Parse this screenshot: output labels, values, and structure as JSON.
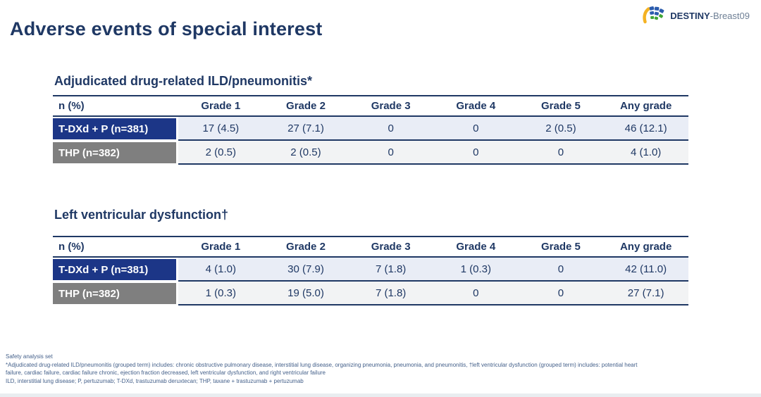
{
  "slide": {
    "title": "Adverse events of special interest",
    "logo": {
      "brand_bold": "DESTINY",
      "brand_light": "-Breast09",
      "icon": "destiny-fan-icon"
    }
  },
  "tables": [
    {
      "title": "Adjudicated drug-related ILD/pneumonitis*",
      "columns": [
        "n (%)",
        "Grade 1",
        "Grade 2",
        "Grade 3",
        "Grade 4",
        "Grade 5",
        "Any grade"
      ],
      "rows": [
        {
          "label": "T-DXd + P (n=381)",
          "values": [
            "17 (4.5)",
            "27 (7.1)",
            "0",
            "0",
            "2 (0.5)",
            "46 (12.1)"
          ]
        },
        {
          "label": "THP (n=382)",
          "values": [
            "2 (0.5)",
            "2 (0.5)",
            "0",
            "0",
            "0",
            "4 (1.0)"
          ]
        }
      ]
    },
    {
      "title": "Left ventricular dysfunction†",
      "columns": [
        "n (%)",
        "Grade 1",
        "Grade 2",
        "Grade 3",
        "Grade 4",
        "Grade 5",
        "Any grade"
      ],
      "rows": [
        {
          "label": "T-DXd + P (n=381)",
          "values": [
            "4 (1.0)",
            "30 (7.9)",
            "7 (1.8)",
            "1 (0.3)",
            "0",
            "42 (11.0)"
          ]
        },
        {
          "label": "THP (n=382)",
          "values": [
            "1 (0.3)",
            "19 (5.0)",
            "7 (1.8)",
            "0",
            "0",
            "27 (7.1)"
          ]
        }
      ]
    }
  ],
  "footnotes": [
    "Safety analysis set",
    "*Adjudicated drug-related ILD/pneumonitis (grouped term) includes: chronic obstructive pulmonary disease, interstitial lung disease, organizing pneumonia, pneumonia, and pneumonitis, †left ventricular dysfunction (grouped term) includes: potential heart",
    "failure, cardiac failure, cardiac failure chronic, ejection fraction decreased, left ventricular dysfunction, and right ventricular failure",
    "ILD, interstitial lung disease; P, pertuzumab; T-DXd, trastuzumab deruxtecan; THP, taxane + trastuzumab + pertuzumab"
  ],
  "colors": {
    "title_navy": "#1f3864",
    "row_tdxd_label_bg": "#1c3687",
    "row_thp_label_bg": "#7f7f7f",
    "row_tdxd_cell_bg": "#e9edf6",
    "row_thp_cell_bg": "#f2f3f4",
    "table_line": "#1f3864",
    "footnote_text": "#44608a",
    "logo_yellow": "#f4b223",
    "logo_blue": "#2b5cad",
    "logo_green": "#3fa535"
  }
}
